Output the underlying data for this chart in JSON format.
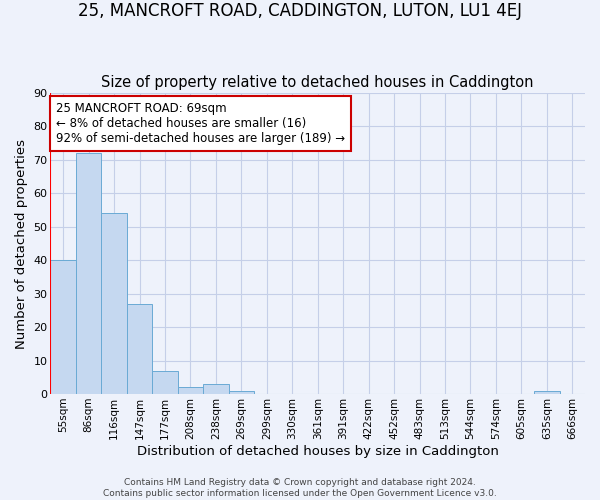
{
  "title": "25, MANCROFT ROAD, CADDINGTON, LUTON, LU1 4EJ",
  "subtitle": "Size of property relative to detached houses in Caddington",
  "xlabel": "Distribution of detached houses by size in Caddington",
  "ylabel": "Number of detached properties",
  "bin_labels": [
    "55sqm",
    "86sqm",
    "116sqm",
    "147sqm",
    "177sqm",
    "208sqm",
    "238sqm",
    "269sqm",
    "299sqm",
    "330sqm",
    "361sqm",
    "391sqm",
    "422sqm",
    "452sqm",
    "483sqm",
    "513sqm",
    "544sqm",
    "574sqm",
    "605sqm",
    "635sqm",
    "666sqm"
  ],
  "bar_values": [
    40,
    72,
    54,
    27,
    7,
    2,
    3,
    1,
    0,
    0,
    0,
    0,
    0,
    0,
    0,
    0,
    0,
    0,
    0,
    1,
    0
  ],
  "bar_color": "#c5d8f0",
  "bar_edge_color": "#6aaad4",
  "annotation_title": "25 MANCROFT ROAD: 69sqm",
  "annotation_line1": "← 8% of detached houses are smaller (16)",
  "annotation_line2": "92% of semi-detached houses are larger (189) →",
  "annotation_box_facecolor": "#ffffff",
  "annotation_border_color": "#cc0000",
  "ylim": [
    0,
    90
  ],
  "yticks": [
    0,
    10,
    20,
    30,
    40,
    50,
    60,
    70,
    80,
    90
  ],
  "footer1": "Contains HM Land Registry data © Crown copyright and database right 2024.",
  "footer2": "Contains public sector information licensed under the Open Government Licence v3.0.",
  "background_color": "#eef2fb",
  "plot_background": "#eef2fb",
  "grid_color": "#c5cfe8",
  "title_fontsize": 12,
  "subtitle_fontsize": 10.5,
  "axis_label_fontsize": 9.5,
  "tick_fontsize": 7.5,
  "annotation_fontsize": 8.5,
  "footer_fontsize": 6.5
}
